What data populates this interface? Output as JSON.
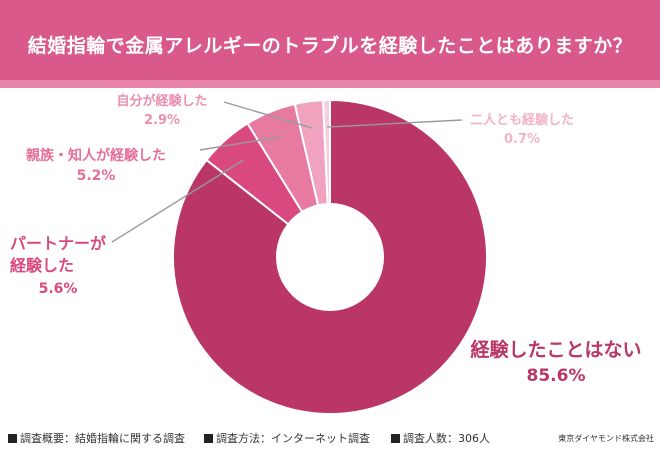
{
  "header": {
    "title": "結婚指輪で金属アレルギーのトラブルを経験したことはありますか？"
  },
  "chart_data": {
    "type": "pie",
    "title": "結婚指輪で金属アレルギーのトラブルを経験したことはありますか？",
    "slices": [
      {
        "label": "経験したことはない",
        "value": 85.6,
        "display": "85.6%",
        "color": "#b93666",
        "label_color": "#b93666"
      },
      {
        "label": "パートナーが経験した",
        "value": 5.6,
        "display": "5.6%",
        "color": "#d9497f",
        "label_color": "#d9497f"
      },
      {
        "label": "親族・知人が経験した",
        "value": 5.2,
        "display": "5.2%",
        "color": "#e67aa0",
        "label_color": "#e66f99"
      },
      {
        "label": "自分が経験した",
        "value": 2.9,
        "display": "2.9%",
        "color": "#f0a2bf",
        "label_color": "#ea8fb0"
      },
      {
        "label": "二人とも経験した",
        "value": 0.7,
        "display": "0.7%",
        "color": "#f8cddc",
        "label_color": "#f2b3c9"
      }
    ]
  },
  "footer": {
    "items": [
      "調査概要：結婚指輪に関する調査",
      "調査方法：インターネット調査",
      "調査人数：306人"
    ],
    "credit": "東京ダイヤモンド株式会社"
  }
}
